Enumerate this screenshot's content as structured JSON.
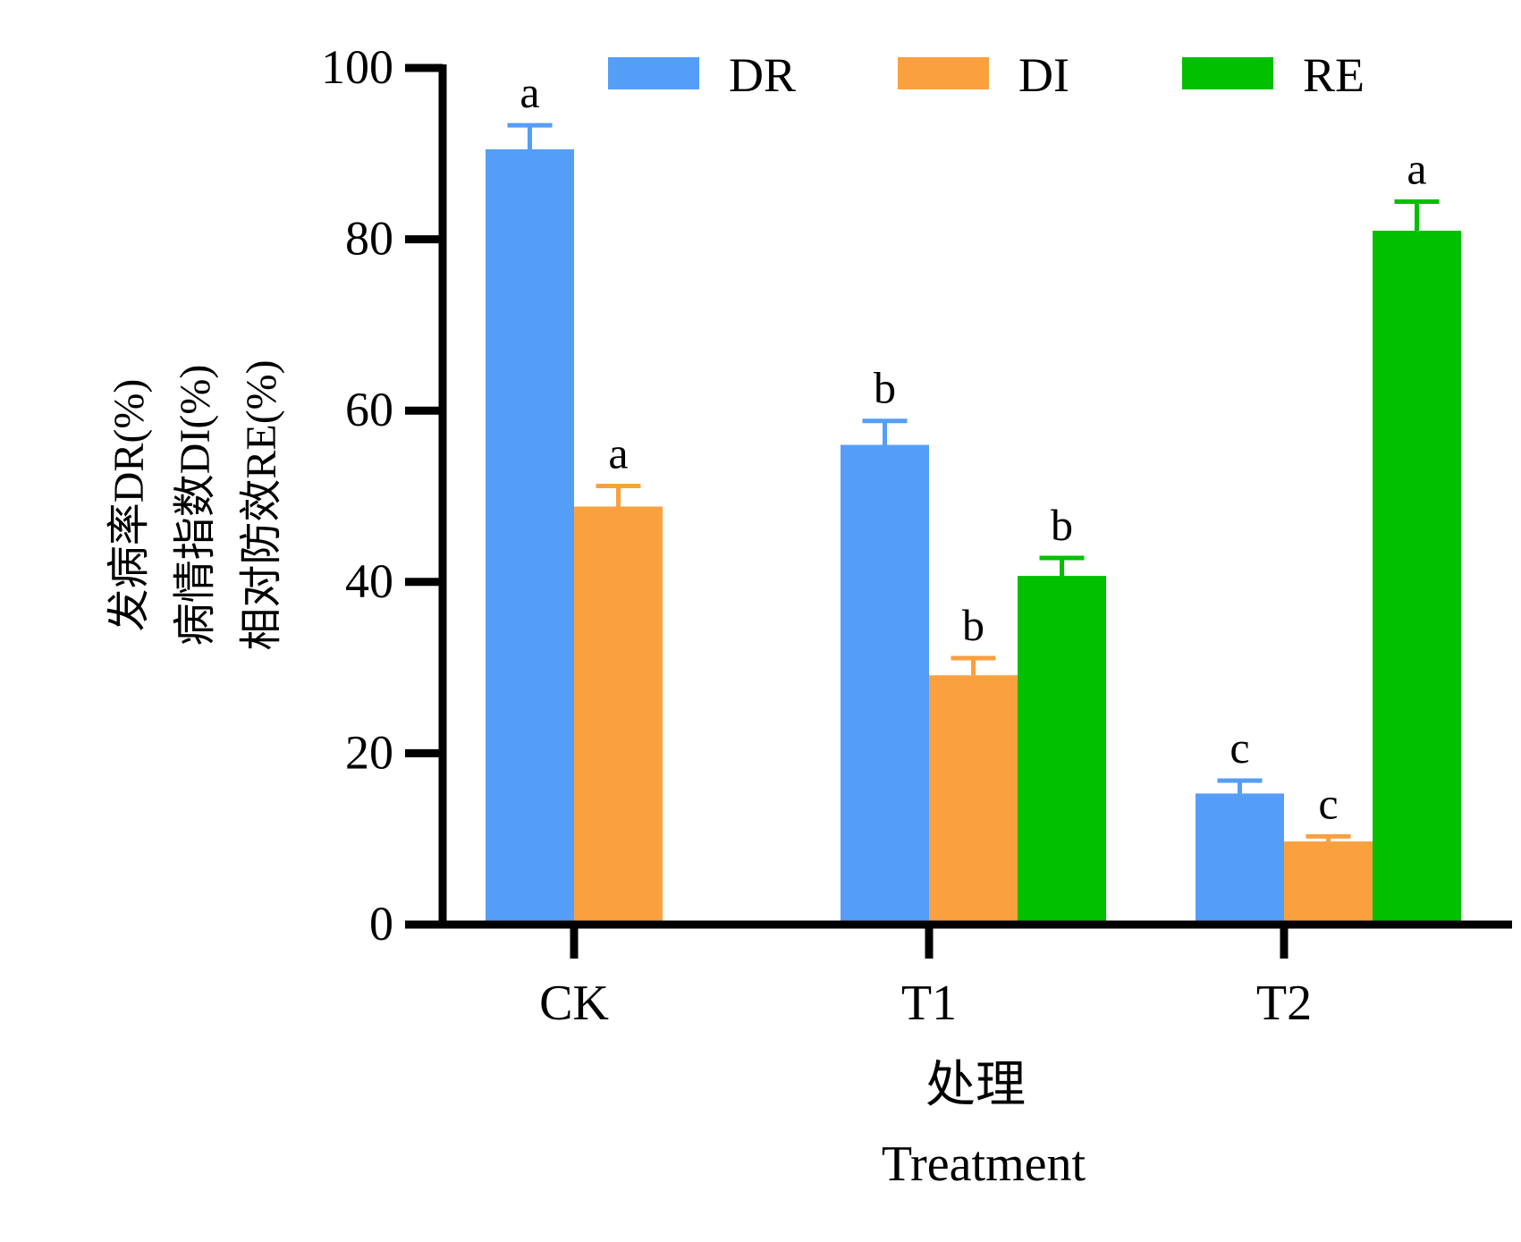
{
  "chart_data": {
    "type": "bar",
    "title": "",
    "categories": [
      "CK",
      "T1",
      "T2"
    ],
    "series": [
      {
        "name": "DR",
        "color": "#559ef8",
        "values": [
          90.5,
          56.0,
          15.3
        ],
        "errors": [
          2.8,
          2.8,
          1.5
        ],
        "letters": [
          "a",
          "b",
          "c"
        ]
      },
      {
        "name": "DI",
        "color": "#fba03f",
        "values": [
          48.8,
          29.1,
          9.7
        ],
        "errors": [
          2.4,
          2.0,
          0.6
        ],
        "letters": [
          "a",
          "b",
          "c"
        ]
      },
      {
        "name": "RE",
        "color": "#00c000",
        "values": [
          null,
          40.7,
          81.0
        ],
        "errors": [
          null,
          2.1,
          3.4
        ],
        "letters": [
          null,
          "b",
          "a"
        ]
      }
    ],
    "ylabel_lines": [
      "发病率DR(%)",
      "病情指数DI(%)",
      "相对防效RE(%)"
    ],
    "xlabel_lines": [
      "处理",
      "Treatment"
    ],
    "ylim": [
      0,
      100
    ],
    "yticks": [
      0,
      20,
      40,
      60,
      80,
      100
    ],
    "grid": false,
    "legend_position": "top-right",
    "error_bars": "upper only"
  }
}
